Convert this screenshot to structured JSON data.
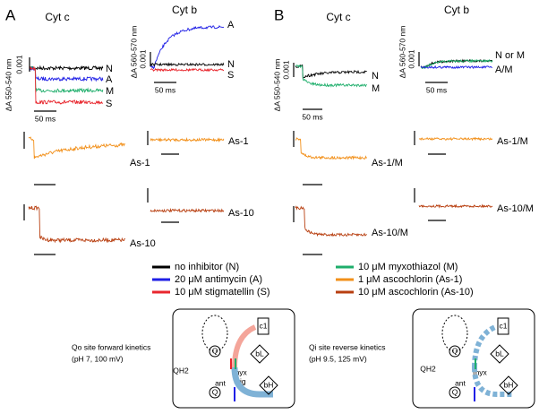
{
  "panel_a": {
    "letter": "A",
    "cyt_c": {
      "title": "Cyt c",
      "y_axis": "ΔA 550-540 nm",
      "scale": "0.001",
      "time": "50 ms",
      "labels": [
        "N",
        "A",
        "M",
        "S"
      ],
      "row2": "As-1",
      "row3": "As-10"
    },
    "cyt_b": {
      "title": "Cyt b",
      "y_axis": "ΔA 560-570 nm",
      "scale": "0.001",
      "time": "50 ms",
      "labels": [
        "A",
        "N",
        "S"
      ],
      "row2": "As-1",
      "row3": "As-10"
    },
    "schematic": {
      "caption": [
        "Qo site forward kinetics",
        "(pH 7, 100 mV)"
      ],
      "labels": [
        "myx",
        "stig",
        "ant",
        "QH2",
        "Q",
        "Q",
        "c1",
        "bL",
        "bH"
      ]
    }
  },
  "panel_b": {
    "letter": "B",
    "cyt_c": {
      "title": "Cyt c",
      "y_axis": "ΔA 550-540 nm",
      "scale": "0.001",
      "time": "50 ms",
      "labels": [
        "N",
        "M"
      ],
      "row2": "As-1/M",
      "row3": "As-10/M"
    },
    "cyt_b": {
      "title": "Cyt b",
      "y_axis": "ΔA 560-570 nm",
      "scale": "0.001",
      "time": "50 ms",
      "labels": [
        "N or M",
        "A/M"
      ],
      "row2": "As-1/M",
      "row3": "As-10/M"
    },
    "schematic": {
      "caption": [
        "Qi site reverse kinetics",
        "(pH 9.5, 125 mV)"
      ],
      "labels": [
        "myx",
        "ant",
        "QH2",
        "Q",
        "Q",
        "c1",
        "bL",
        "bH"
      ]
    }
  },
  "legend": [
    {
      "name": "no inhibitor (N)",
      "color": "#000000"
    },
    {
      "name": "20 μM antimycin (A)",
      "color": "#1f1fe6"
    },
    {
      "name": "10 μM stigmatellin (S)",
      "color": "#e8262d"
    },
    {
      "name": "10 μM myxothiazol (M)",
      "color": "#1eae6b"
    },
    {
      "name": "1 μM ascochlorin (As-1)",
      "color": "#f2901a"
    },
    {
      "name": "10 μM ascochlorin (As-10)",
      "color": "#b83f10"
    }
  ]
}
